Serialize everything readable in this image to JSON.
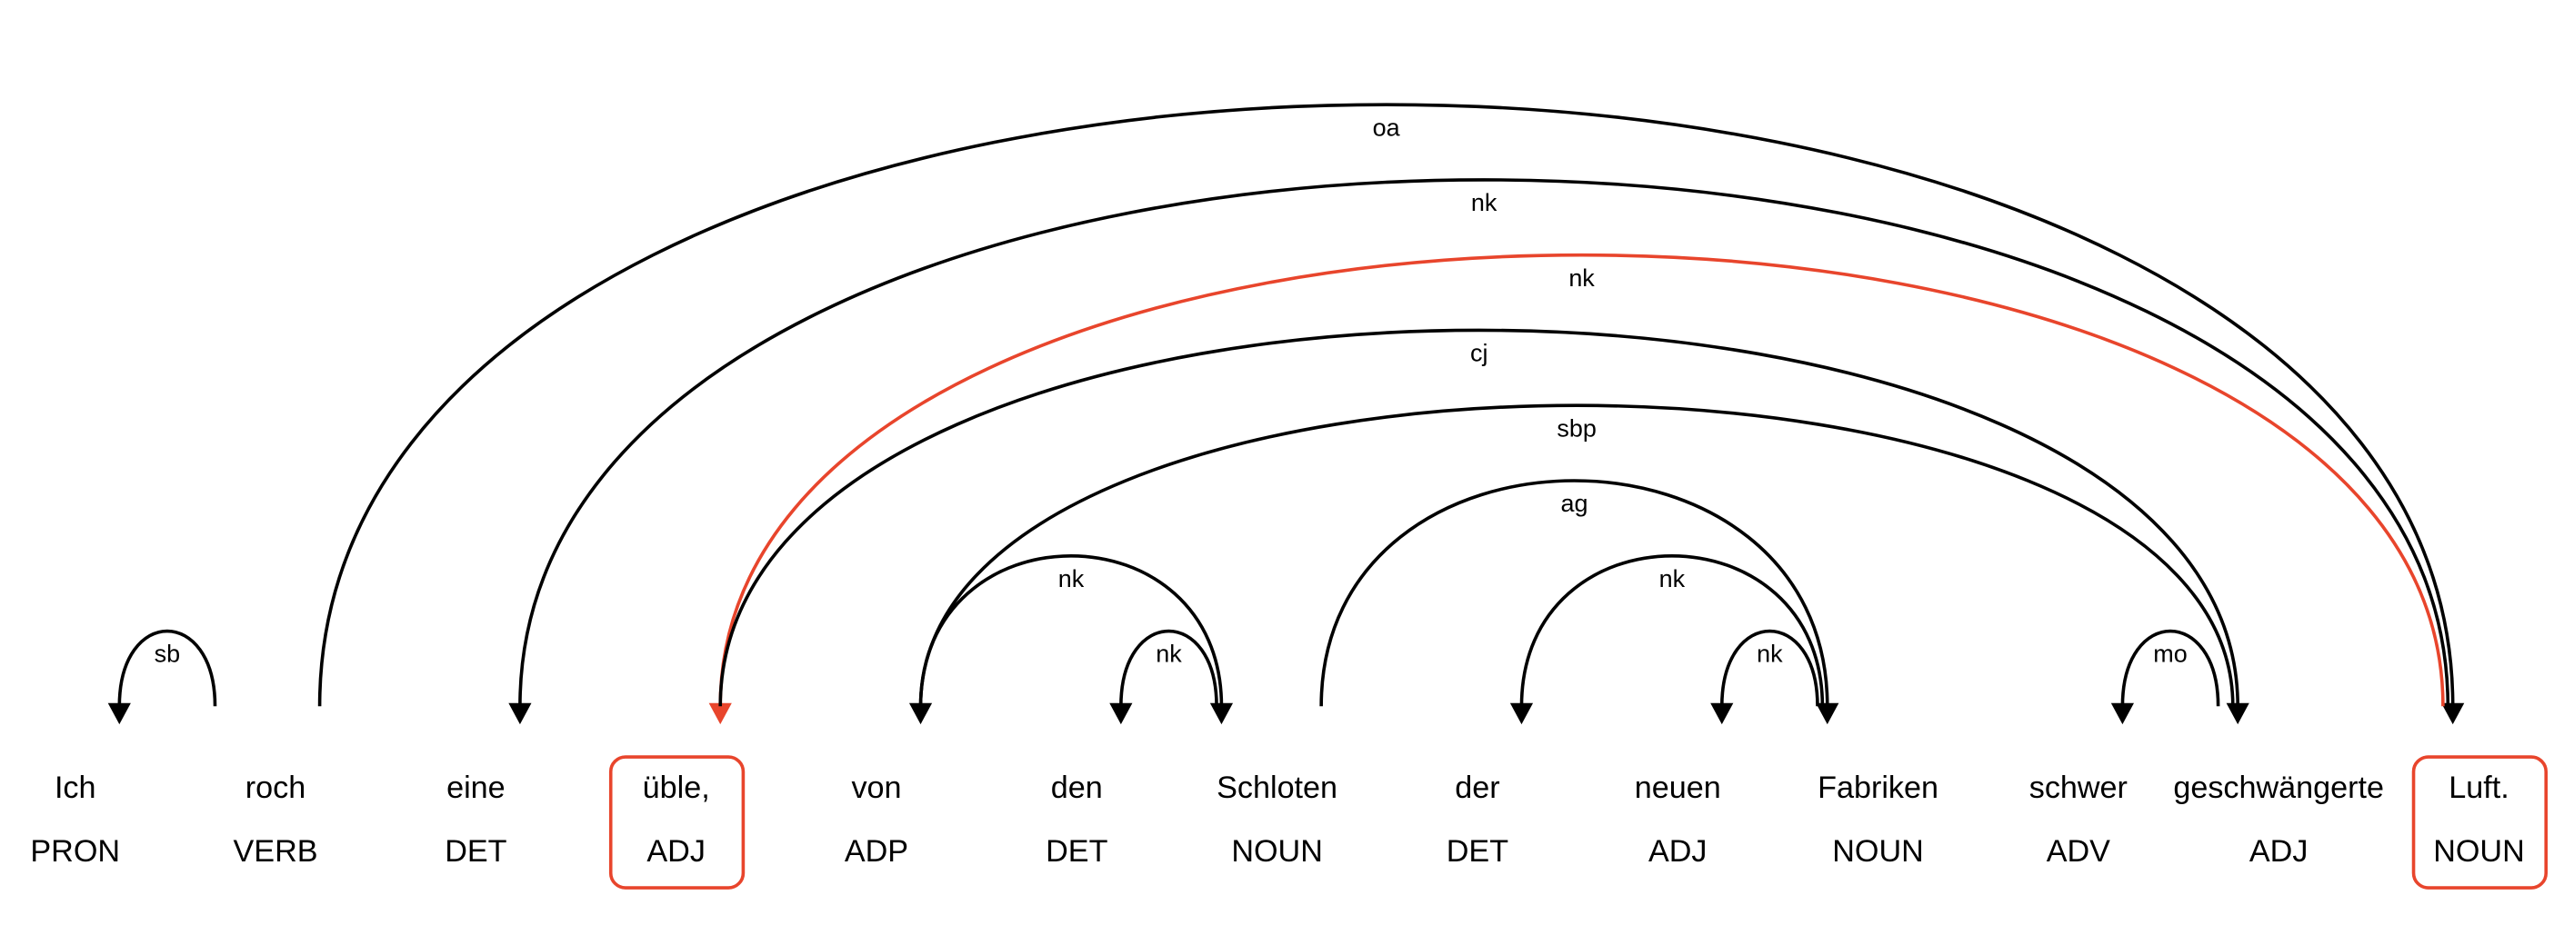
{
  "words": [
    {
      "text": "Ich",
      "tag": "PRON"
    },
    {
      "text": "roch",
      "tag": "VERB"
    },
    {
      "text": "eine",
      "tag": "DET"
    },
    {
      "text": "üble,",
      "tag": "ADJ",
      "highlighted": true
    },
    {
      "text": "von",
      "tag": "ADP"
    },
    {
      "text": "den",
      "tag": "DET"
    },
    {
      "text": "Schloten",
      "tag": "NOUN"
    },
    {
      "text": "der",
      "tag": "DET"
    },
    {
      "text": "neuen",
      "tag": "ADJ"
    },
    {
      "text": "Fabriken",
      "tag": "NOUN"
    },
    {
      "text": "schwer",
      "tag": "ADV"
    },
    {
      "text": "geschwängerte",
      "tag": "ADJ"
    },
    {
      "text": "Luft.",
      "tag": "NOUN",
      "highlighted": true
    }
  ],
  "arcs": [
    {
      "label": "sb",
      "from": 1,
      "to": 0
    },
    {
      "label": "oa",
      "from": 1,
      "to": 12
    },
    {
      "label": "nk",
      "from": 12,
      "to": 2
    },
    {
      "label": "nk",
      "from": 12,
      "to": 3,
      "highlighted": true
    },
    {
      "label": "cj",
      "from": 3,
      "to": 11
    },
    {
      "label": "sbp",
      "from": 11,
      "to": 4
    },
    {
      "label": "nk",
      "from": 4,
      "to": 6
    },
    {
      "label": "nk",
      "from": 6,
      "to": 5
    },
    {
      "label": "ag",
      "from": 6,
      "to": 9
    },
    {
      "label": "nk",
      "from": 9,
      "to": 7
    },
    {
      "label": "nk",
      "from": 9,
      "to": 8
    },
    {
      "label": "mo",
      "from": 11,
      "to": 10
    }
  ]
}
